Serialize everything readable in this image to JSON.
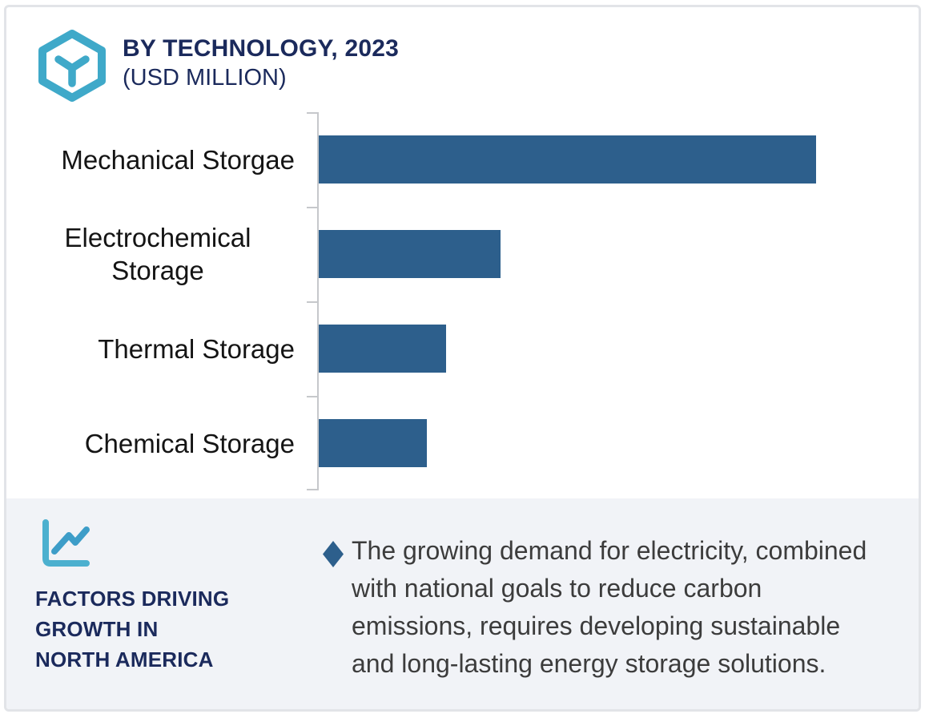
{
  "header": {
    "title": "BY TECHNOLOGY, 2023",
    "subtitle": "(USD MILLION)",
    "icon": "hexagon-box-icon"
  },
  "chart_data": {
    "type": "bar",
    "orientation": "horizontal",
    "title": "BY TECHNOLOGY, 2023",
    "subtitle": "(USD MILLION)",
    "categories": [
      "Mechanical Storgae",
      "Electrochemical Storage",
      "Thermal Storage",
      "Chemical Storage"
    ],
    "values_relative_to_max_pct": [
      100,
      36.5,
      25.6,
      21.7
    ],
    "value_axis_tick_labels": "none shown",
    "data_labels_shown": false,
    "gridlines": "off",
    "legend": "none",
    "bar_color": "#2d5f8c",
    "axis_color": "#c6c8cb"
  },
  "footer": {
    "icon": "line-chart-icon",
    "heading": "FACTORS DRIVING\nGROWTH IN\nNORTH AMERICA",
    "bullet_marker": "diamond",
    "bullet_text": "The growing demand for electricity, combined with national goals to reduce carbon emissions, requires developing sustainable and long-lasting energy storage solutions."
  },
  "colors": {
    "accent_teal": "#3fa9c9",
    "navy_text": "#1b2a5c",
    "bar_blue": "#2d5f8c",
    "footer_background": "#f1f3f7",
    "body_text": "#3c3c3c",
    "card_border": "#e2e4e8"
  }
}
